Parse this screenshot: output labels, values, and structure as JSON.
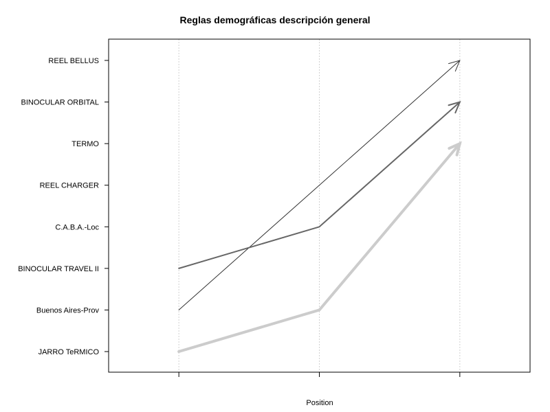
{
  "chart_data": {
    "type": "line",
    "title": "Reglas demográficas descripción general",
    "xlabel": "Position",
    "ylabel": "",
    "x": [
      1,
      2,
      3
    ],
    "xlim": [
      0.5,
      3.5
    ],
    "y_categories": [
      "JARRO TeRMICO",
      "Buenos Aires-Prov",
      "BINOCULAR TRAVEL II",
      "C.A.B.A.-Loc",
      "REEL CHARGER",
      "TERMO",
      "BINOCULAR ORBITAL",
      "REEL BELLUS"
    ],
    "grid": "vertical dotted",
    "legend": "none",
    "series": [
      {
        "path": [
          "Buenos Aires-Prov",
          "REEL CHARGER",
          "REEL BELLUS"
        ],
        "color": "#333333",
        "width": "thin",
        "arrow": true
      },
      {
        "path": [
          "BINOCULAR TRAVEL II",
          "C.A.B.A.-Loc",
          "BINOCULAR ORBITAL"
        ],
        "color": "#666666",
        "width": "medium",
        "arrow": true
      },
      {
        "path": [
          "JARRO TeRMICO",
          "Buenos Aires-Prov",
          "TERMO"
        ],
        "color": "#cccccc",
        "width": "thick",
        "arrow": true
      }
    ]
  }
}
